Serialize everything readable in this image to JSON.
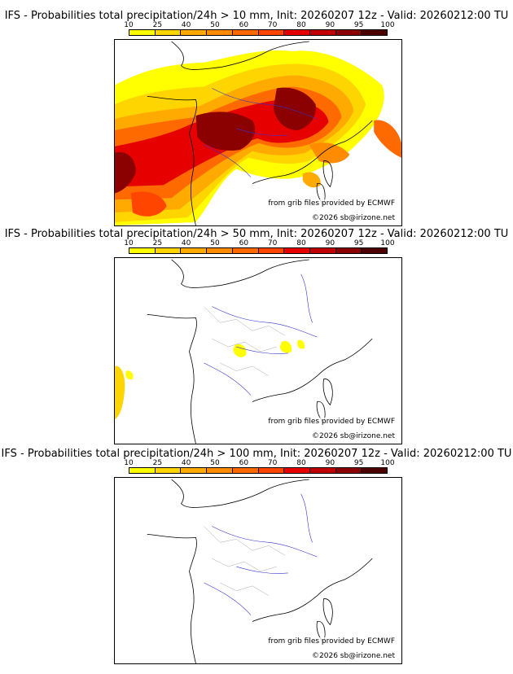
{
  "colorbar": {
    "ticks": [
      "10",
      "25",
      "40",
      "50",
      "60",
      "70",
      "80",
      "90",
      "95",
      "100"
    ],
    "colors": [
      "#ffff00",
      "#ffd500",
      "#ffaa00",
      "#ff8c00",
      "#ff6a00",
      "#ff4500",
      "#e60000",
      "#c00000",
      "#8b0000",
      "#4d0000"
    ]
  },
  "credits": {
    "source": "from grib files provided by ECMWF",
    "copyright": "©2026 sb@irizone.net"
  },
  "panels": [
    {
      "title": "IFS - Probabilities total precipitation/24h > 10 mm, Init: 20260207 12z - Valid: 20260212:00 TU",
      "threshold_mm": 10
    },
    {
      "title": "IFS - Probabilities total precipitation/24h > 50 mm, Init: 20260207 12z - Valid: 20260212:00 TU",
      "threshold_mm": 50
    },
    {
      "title": "IFS - Probabilities total precipitation/24h > 100 mm, Init: 20260207 12z - Valid: 20260212:00 TU",
      "threshold_mm": 100
    }
  ]
}
